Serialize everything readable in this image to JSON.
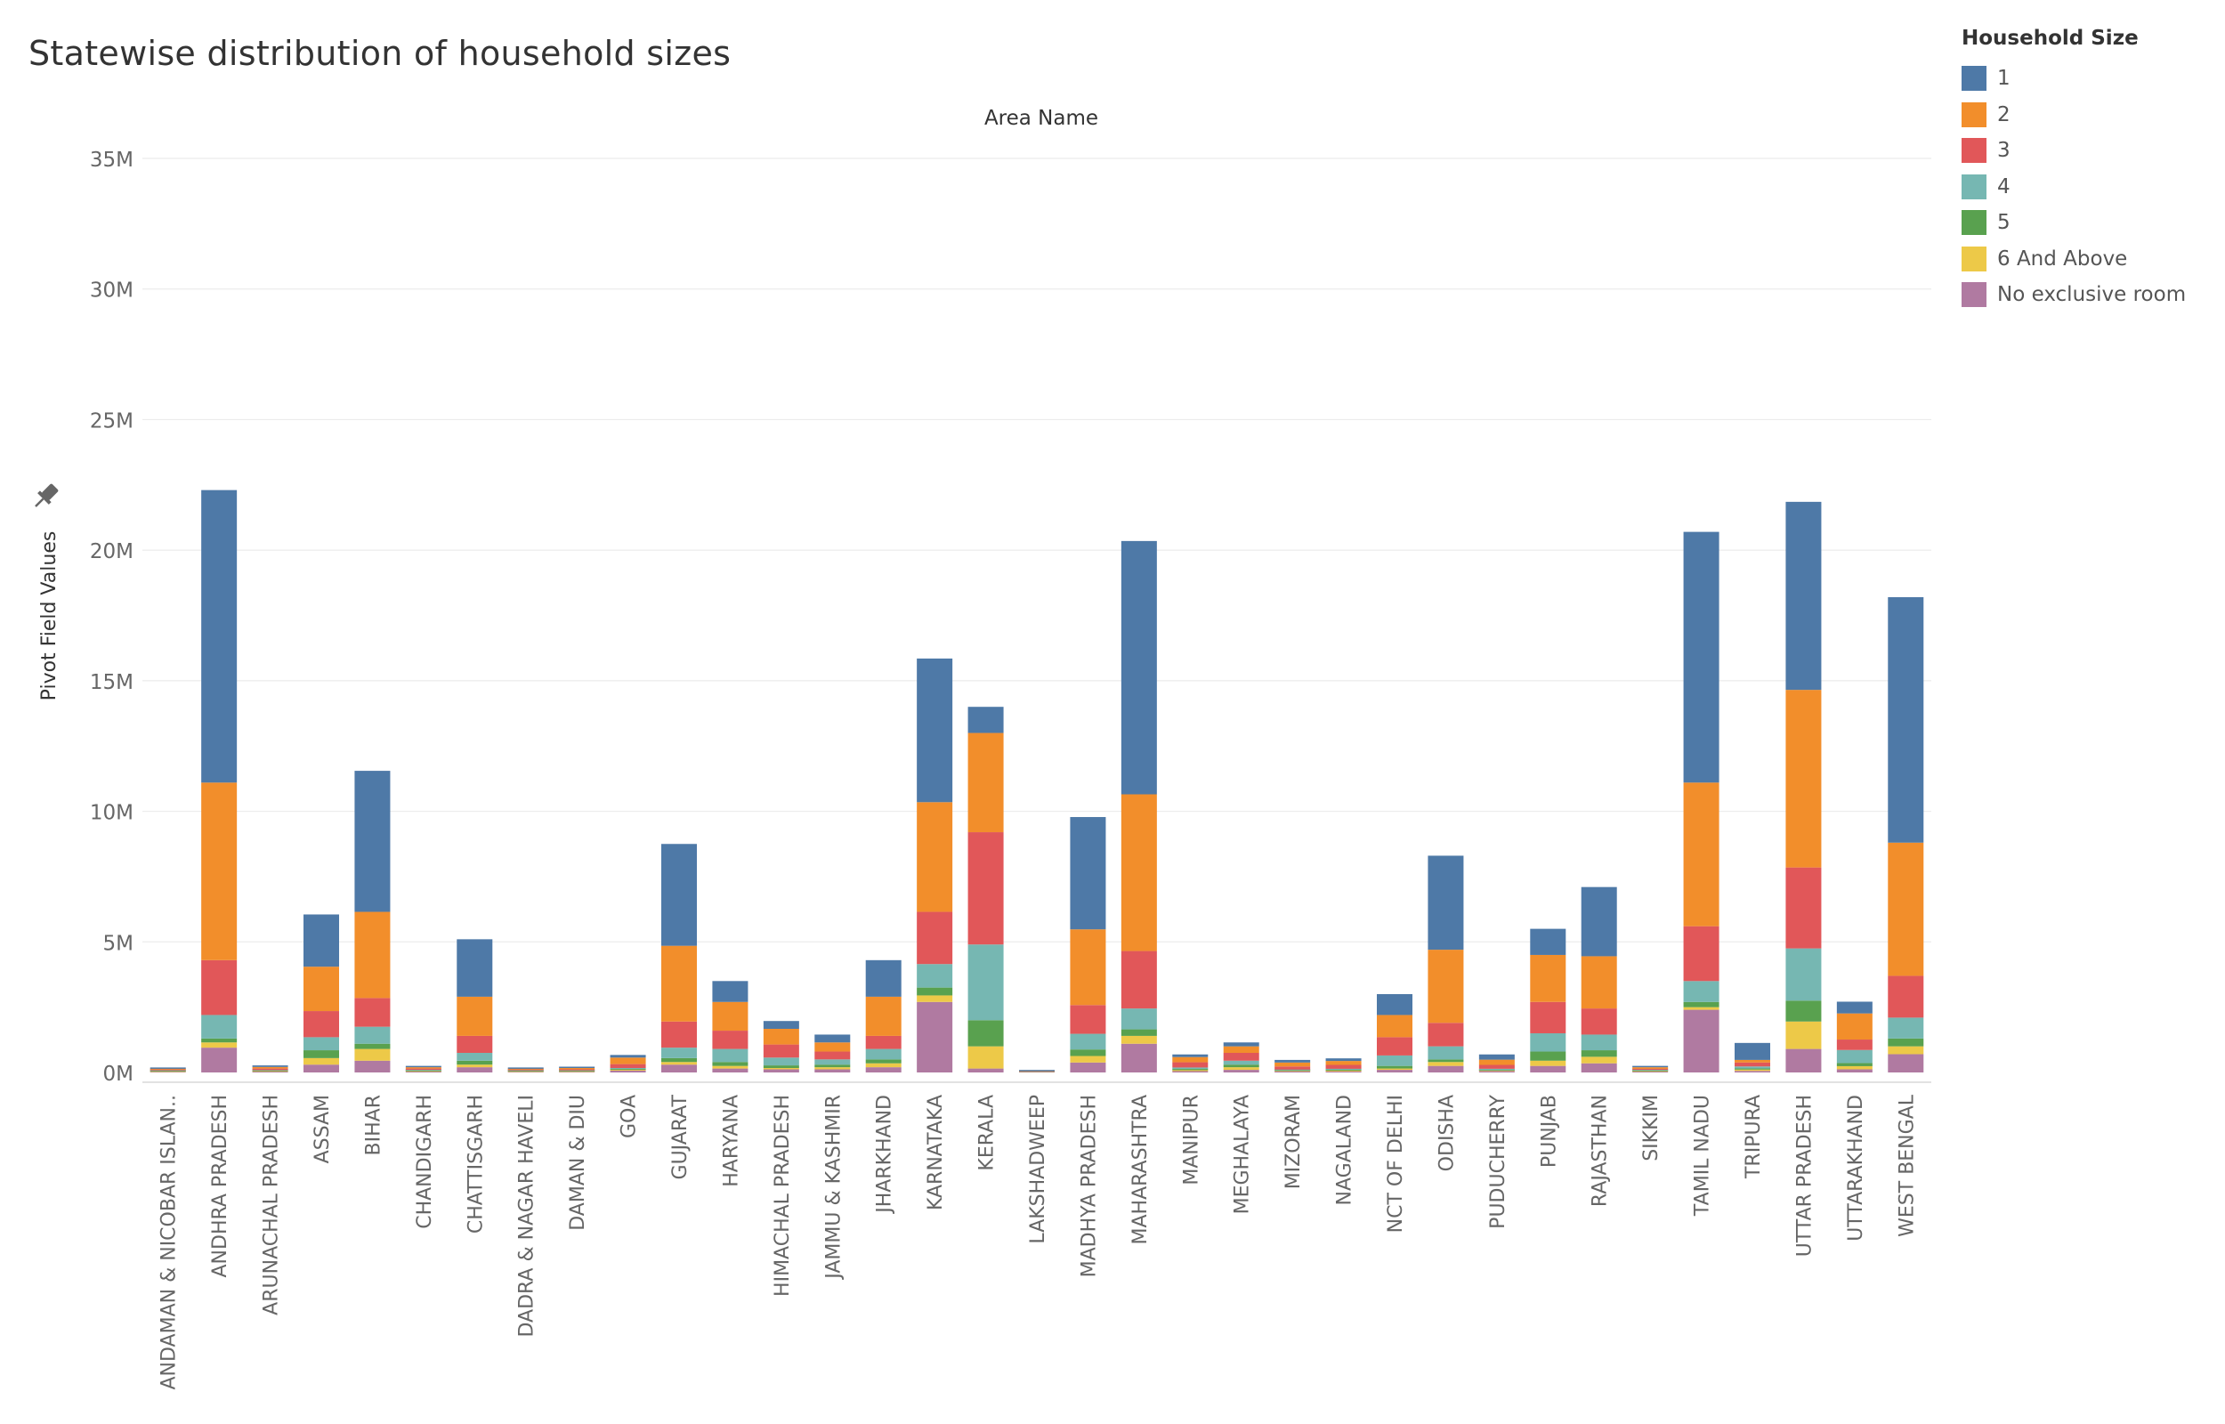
{
  "chart_data": {
    "type": "bar",
    "stacked": true,
    "title": "Statewise distribution of household sizes",
    "header": "Area Name",
    "ylabel": "Pivot Field Values",
    "ylim": [
      0,
      35000000
    ],
    "yticks": [
      0,
      5000000,
      10000000,
      15000000,
      20000000,
      25000000,
      30000000,
      35000000
    ],
    "ytick_labels": [
      "0M",
      "5M",
      "10M",
      "15M",
      "20M",
      "25M",
      "30M",
      "35M"
    ],
    "grid": true,
    "legend_title": "Household Size",
    "legend_position": "top-right",
    "categories": [
      "ANDAMAN & NICOBAR ISLAN..",
      "ANDHRA PRADESH",
      "ARUNACHAL PRADESH",
      "ASSAM",
      "BIHAR",
      "CHANDIGARH",
      "CHATTISGARH",
      "DADRA & NAGAR HAVELI",
      "DAMAN & DIU",
      "GOA",
      "GUJARAT",
      "HARYANA",
      "HIMACHAL PRADESH",
      "JAMMU & KASHMIR",
      "JHARKHAND",
      "KARNATAKA",
      "KERALA",
      "LAKSHADWEEP",
      "MADHYA PRADESH",
      "MAHARASHTRA",
      "MANIPUR",
      "MEGHALAYA",
      "MIZORAM",
      "NAGALAND",
      "NCT OF DELHI",
      "ODISHA",
      "PUDUCHERRY",
      "PUNJAB",
      "RAJASTHAN",
      "SIKKIM",
      "TAMIL NADU",
      "TRIPURA",
      "UTTAR PRADESH",
      "UTTARAKHAND",
      "WEST BENGAL"
    ],
    "series": [
      {
        "name": "No exclusive room",
        "color": "#b07aa1",
        "values": [
          0.02,
          0.95,
          0.03,
          0.3,
          0.45,
          0.03,
          0.2,
          0.02,
          0.02,
          0.07,
          0.3,
          0.15,
          0.12,
          0.12,
          0.2,
          2.7,
          0.15,
          0.01,
          0.38,
          1.1,
          0.05,
          0.1,
          0.04,
          0.04,
          0.1,
          0.25,
          0.05,
          0.25,
          0.35,
          0.03,
          2.4,
          0.06,
          0.9,
          0.12,
          0.7
        ]
      },
      {
        "name": "6 And Above",
        "color": "#edc948",
        "values": [
          0.02,
          0.2,
          0.02,
          0.25,
          0.45,
          0.02,
          0.1,
          0.02,
          0.02,
          0.03,
          0.1,
          0.1,
          0.05,
          0.08,
          0.15,
          0.25,
          0.85,
          0.005,
          0.25,
          0.3,
          0.04,
          0.1,
          0.02,
          0.03,
          0.05,
          0.15,
          0.02,
          0.2,
          0.25,
          0.02,
          0.1,
          0.05,
          1.05,
          0.12,
          0.3
        ]
      },
      {
        "name": "5",
        "color": "#59a14f",
        "values": [
          0.02,
          0.15,
          0.02,
          0.3,
          0.2,
          0.02,
          0.15,
          0.02,
          0.02,
          0.03,
          0.15,
          0.15,
          0.1,
          0.1,
          0.15,
          0.3,
          1.0,
          0.005,
          0.25,
          0.25,
          0.04,
          0.1,
          0.02,
          0.03,
          0.1,
          0.1,
          0.02,
          0.35,
          0.25,
          0.02,
          0.2,
          0.04,
          0.8,
          0.12,
          0.3
        ]
      },
      {
        "name": "4",
        "color": "#76b7b2",
        "values": [
          0.02,
          0.9,
          0.02,
          0.5,
          0.65,
          0.03,
          0.3,
          0.02,
          0.02,
          0.04,
          0.4,
          0.5,
          0.3,
          0.2,
          0.4,
          0.9,
          2.9,
          0.005,
          0.6,
          0.8,
          0.06,
          0.15,
          0.03,
          0.04,
          0.4,
          0.5,
          0.05,
          0.7,
          0.6,
          0.03,
          0.8,
          0.08,
          2.0,
          0.5,
          0.8
        ]
      },
      {
        "name": "3",
        "color": "#e15759",
        "values": [
          0.03,
          2.1,
          0.06,
          1.0,
          1.1,
          0.05,
          0.65,
          0.03,
          0.04,
          0.15,
          1.0,
          0.7,
          0.5,
          0.3,
          0.5,
          2.0,
          4.3,
          0.01,
          1.1,
          2.2,
          0.2,
          0.3,
          0.12,
          0.15,
          0.7,
          0.9,
          0.15,
          1.2,
          1.0,
          0.04,
          2.1,
          0.15,
          3.1,
          0.4,
          1.6
        ]
      },
      {
        "name": "2",
        "color": "#f28e2b",
        "values": [
          0.03,
          6.8,
          0.06,
          1.7,
          3.3,
          0.05,
          1.5,
          0.03,
          0.05,
          0.25,
          2.9,
          1.1,
          0.6,
          0.35,
          1.5,
          4.2,
          3.8,
          0.01,
          2.9,
          6.0,
          0.2,
          0.25,
          0.15,
          0.15,
          0.85,
          2.8,
          0.2,
          1.8,
          2.0,
          0.06,
          5.5,
          0.1,
          6.8,
          1.0,
          5.1
        ]
      },
      {
        "name": "1",
        "color": "#4e79a7",
        "values": [
          0.04,
          11.2,
          0.06,
          2.0,
          5.4,
          0.05,
          2.2,
          0.04,
          0.05,
          0.1,
          3.9,
          0.8,
          0.3,
          0.3,
          1.4,
          5.5,
          1.0,
          0.01,
          4.3,
          9.7,
          0.1,
          0.15,
          0.1,
          0.1,
          0.8,
          3.6,
          0.2,
          1.0,
          2.65,
          0.05,
          9.6,
          0.65,
          7.2,
          0.45,
          9.4
        ]
      }
    ],
    "value_unit": "millions"
  }
}
